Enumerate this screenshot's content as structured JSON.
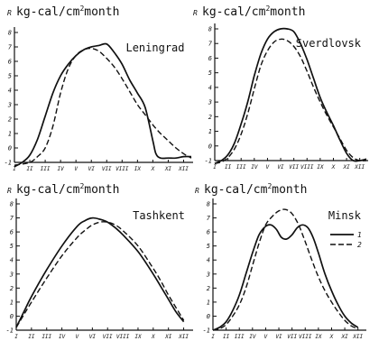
{
  "figure": {
    "unit_prefix": "R",
    "unit_main": "kg-cal/cm",
    "unit_sup": "2",
    "unit_tail": "month",
    "legend": [
      "1",
      "2"
    ]
  },
  "chart_data": [
    {
      "type": "line",
      "title": "Leningrad",
      "categories": [
        "I",
        "II",
        "III",
        "IV",
        "V",
        "VI",
        "VII",
        "VIII",
        "IX",
        "X",
        "XI",
        "XII"
      ],
      "yticks": [
        -1,
        0,
        1,
        2,
        3,
        4,
        5,
        6,
        7,
        8
      ],
      "ylim": [
        -1,
        8
      ],
      "grid": false,
      "series": [
        {
          "name": "1",
          "x": [
            1,
            1.5,
            2,
            2.5,
            3,
            3.5,
            4,
            4.5,
            5,
            5.5,
            6,
            6.5,
            7,
            7.5,
            8,
            8.5,
            9,
            9.5,
            10,
            10.2,
            10.5,
            11,
            11.5,
            12,
            12.5
          ],
          "values": [
            -1.3,
            -1.0,
            -0.5,
            0.6,
            2.2,
            3.8,
            5.0,
            5.8,
            6.4,
            6.8,
            7.0,
            7.1,
            7.2,
            6.6,
            5.8,
            4.7,
            3.8,
            2.8,
            0.5,
            -0.4,
            -0.7,
            -0.7,
            -0.7,
            -0.6,
            -0.6
          ]
        },
        {
          "name": "2",
          "x": [
            1,
            2,
            2.5,
            3,
            3.5,
            4,
            4.5,
            5,
            5.5,
            6,
            6.5,
            7,
            7.5,
            8,
            8.5,
            9,
            9.5,
            10,
            10.5,
            11,
            11.5,
            12,
            12.5
          ],
          "values": [
            -1.2,
            -1.0,
            -0.6,
            0.0,
            1.5,
            3.8,
            5.5,
            6.4,
            6.8,
            6.9,
            6.7,
            6.2,
            5.6,
            4.8,
            3.9,
            3.0,
            2.3,
            1.6,
            1.0,
            0.5,
            0.0,
            -0.4,
            -0.7
          ]
        }
      ]
    },
    {
      "type": "line",
      "title": "Sverdlovsk",
      "categories": [
        "I",
        "II",
        "III",
        "IV",
        "V",
        "VI",
        "VII",
        "VIII",
        "IX",
        "X",
        "XI",
        "XII"
      ],
      "yticks": [
        -1,
        0,
        1,
        2,
        3,
        4,
        5,
        6,
        7,
        8
      ],
      "ylim": [
        -1,
        8
      ],
      "grid": false,
      "series": [
        {
          "name": "1",
          "x": [
            1,
            1.5,
            2,
            2.5,
            3,
            3.5,
            4,
            4.5,
            5,
            5.5,
            6,
            6.5,
            7,
            7.5,
            8,
            8.5,
            9,
            9.5,
            10,
            10.5,
            11,
            11.5,
            12,
            12.5
          ],
          "values": [
            -1.2,
            -1.0,
            -0.6,
            0.2,
            1.5,
            3.0,
            4.8,
            6.3,
            7.3,
            7.8,
            8.0,
            8.0,
            7.8,
            7.0,
            5.9,
            4.6,
            3.3,
            2.3,
            1.4,
            0.4,
            -0.5,
            -1.0,
            -1.0,
            -0.9
          ]
        },
        {
          "name": "2",
          "x": [
            1,
            1.5,
            2,
            2.5,
            3,
            3.5,
            4,
            4.5,
            5,
            5.5,
            6,
            6.5,
            7,
            7.5,
            8,
            8.5,
            9,
            9.5,
            10,
            10.5,
            11,
            11.5,
            12,
            12.5
          ],
          "values": [
            -1.2,
            -1.1,
            -0.8,
            -0.2,
            0.8,
            2.2,
            3.9,
            5.5,
            6.5,
            7.1,
            7.3,
            7.2,
            6.8,
            6.1,
            5.1,
            4.0,
            3.0,
            2.1,
            1.3,
            0.5,
            -0.3,
            -0.8,
            -1.0,
            -1.0
          ]
        }
      ]
    },
    {
      "type": "line",
      "title": "Tashkent",
      "categories": [
        "I",
        "II",
        "III",
        "IV",
        "V",
        "VI",
        "VII",
        "VIII",
        "IX",
        "X",
        "XI",
        "XII"
      ],
      "yticks": [
        -1,
        0,
        1,
        2,
        3,
        4,
        5,
        6,
        7,
        8
      ],
      "ylim": [
        -1,
        8
      ],
      "grid": false,
      "series": [
        {
          "name": "1",
          "x": [
            1,
            1.5,
            2,
            3,
            4,
            5,
            5.5,
            6,
            6.5,
            7,
            7.5,
            8,
            9,
            10,
            10.5,
            11,
            11.5,
            12
          ],
          "values": [
            -0.8,
            0.3,
            1.4,
            3.3,
            5.0,
            6.4,
            6.8,
            7.0,
            6.9,
            6.7,
            6.3,
            5.8,
            4.6,
            3.0,
            2.1,
            1.2,
            0.3,
            -0.4
          ]
        },
        {
          "name": "2",
          "x": [
            1,
            1.5,
            2,
            3,
            4,
            5,
            5.5,
            6,
            6.5,
            7,
            7.5,
            8,
            9,
            10,
            10.5,
            11,
            11.5,
            12
          ],
          "values": [
            -0.8,
            0.1,
            1.0,
            2.7,
            4.3,
            5.6,
            6.1,
            6.5,
            6.7,
            6.7,
            6.5,
            6.1,
            5.0,
            3.4,
            2.5,
            1.5,
            0.6,
            -0.3
          ]
        }
      ]
    },
    {
      "type": "line",
      "title": "Minsk",
      "categories": [
        "I",
        "II",
        "III",
        "IV",
        "V",
        "VI",
        "VII",
        "VIII",
        "IX",
        "X",
        "XI",
        "XII"
      ],
      "yticks": [
        -1,
        0,
        1,
        2,
        3,
        4,
        5,
        6,
        7,
        8
      ],
      "ylim": [
        -1,
        8
      ],
      "grid": false,
      "legend": "right",
      "series": [
        {
          "name": "1",
          "x": [
            1,
            1.5,
            2,
            2.5,
            3,
            3.5,
            4,
            4.5,
            5,
            5.4,
            5.8,
            6.2,
            6.6,
            7,
            7.4,
            7.8,
            8.2,
            8.6,
            9,
            9.5,
            10,
            10.5,
            11,
            11.5,
            12
          ],
          "values": [
            -1.0,
            -0.8,
            -0.4,
            0.4,
            1.5,
            3.0,
            4.5,
            5.8,
            6.4,
            6.5,
            6.2,
            5.6,
            5.5,
            5.8,
            6.3,
            6.5,
            6.3,
            5.6,
            4.5,
            3.0,
            1.8,
            0.8,
            0.0,
            -0.5,
            -0.8
          ]
        },
        {
          "name": "2",
          "x": [
            1,
            1.5,
            2,
            2.5,
            3,
            3.5,
            4,
            4.5,
            5,
            5.5,
            6,
            6.5,
            7,
            7.5,
            8,
            8.5,
            9,
            9.5,
            10,
            10.5,
            11,
            11.5,
            12
          ],
          "values": [
            -1.0,
            -0.9,
            -0.6,
            0.0,
            0.8,
            2.0,
            3.6,
            5.2,
            6.5,
            7.1,
            7.5,
            7.6,
            7.3,
            6.5,
            5.3,
            4.0,
            2.8,
            1.8,
            1.0,
            0.3,
            -0.3,
            -0.7,
            -0.9
          ]
        }
      ]
    }
  ]
}
